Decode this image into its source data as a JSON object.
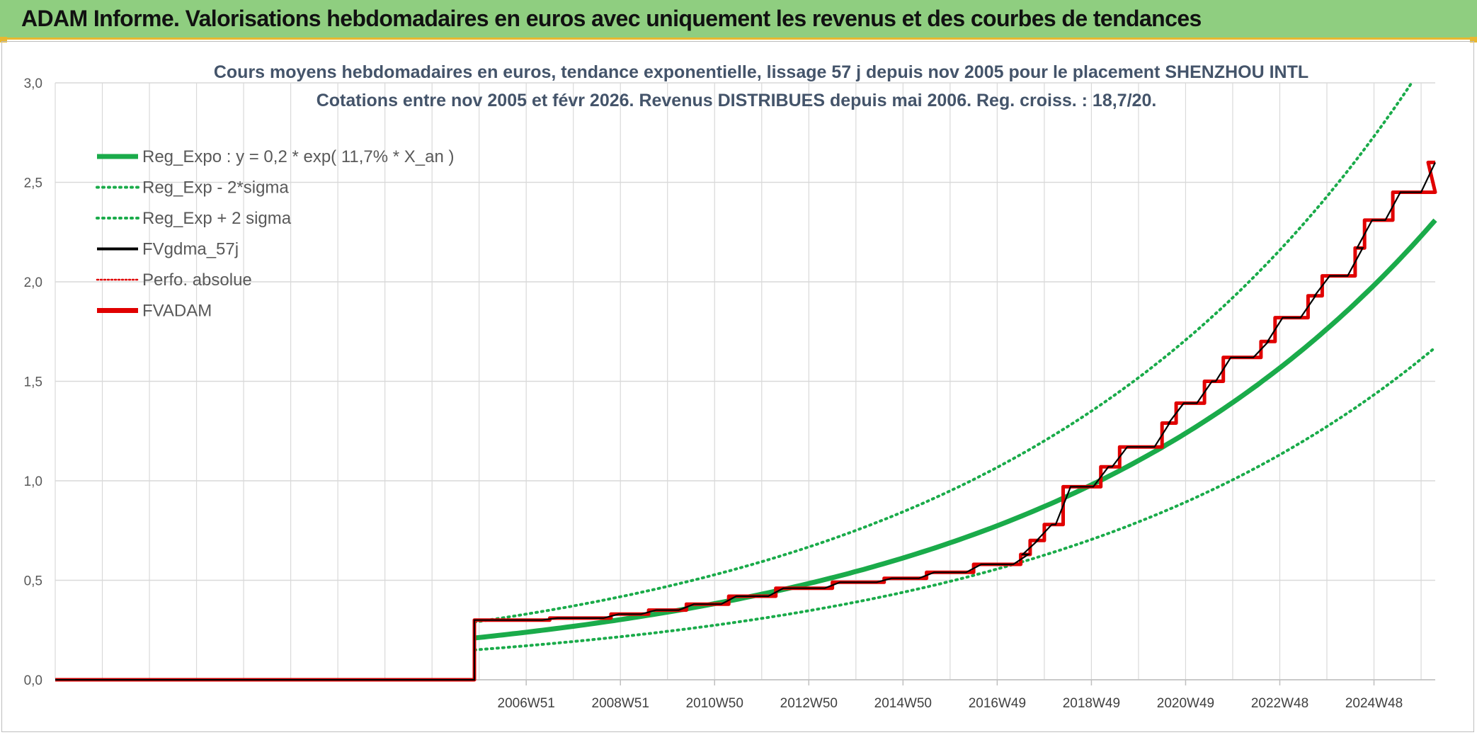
{
  "header": {
    "title": "ADAM Informe. Valorisations hebdomadaires en euros avec uniquement les revenus et des courbes de tendances"
  },
  "colors": {
    "header_bg": "#8fce80",
    "green": "#1aab4a",
    "black": "#000000",
    "red": "#e00000",
    "grid": "#d9d9d9"
  },
  "chart_data": {
    "type": "line",
    "title_line1": "Cours moyens hebdomadaires en euros, tendance exponentielle, lissage 57 j depuis nov 2005 pour le placement SHENZHOU INTL",
    "title_line2": "Cotations entre nov 2005 et févr 2026. Revenus DISTRIBUES depuis mai 2006. Reg. croiss. : 18,7/20.",
    "ylim": [
      0,
      3
    ],
    "yticks": [
      "0,0",
      "0,5",
      "1,0",
      "1,5",
      "2,0",
      "2,5",
      "3,0"
    ],
    "xlim": [
      1997.0,
      2026.3
    ],
    "xtick_labels": [
      "2006W51",
      "2008W51",
      "2010W50",
      "2012W50",
      "2014W50",
      "2016W49",
      "2018W49",
      "2020W49",
      "2022W48",
      "2024W48"
    ],
    "xtick_years": [
      2007.0,
      2009.0,
      2011.0,
      2013.0,
      2015.0,
      2017.0,
      2019.0,
      2021.0,
      2023.0,
      2025.0
    ],
    "grid": true,
    "legend_position": "top-left",
    "legend": [
      {
        "label": "Reg_Expo : y = 0,2 * exp( 11,7% *  X_an )",
        "color": "#1aab4a",
        "style": "solid-thick"
      },
      {
        "label": "Reg_Exp - 2*sigma",
        "color": "#1aab4a",
        "style": "dotted"
      },
      {
        "label": "Reg_Exp + 2 sigma",
        "color": "#1aab4a",
        "style": "dotted"
      },
      {
        "label": "FVgdma_57j",
        "color": "#000000",
        "style": "solid-thin"
      },
      {
        "label": "Perfo. absolue",
        "color": "#e00000",
        "style": "dotted"
      },
      {
        "label": "FVADAM",
        "color": "#e00000",
        "style": "solid-thick"
      }
    ],
    "series": [
      {
        "name": "Reg_Expo : y = 0,2 * exp( 11,7% *  X_an )",
        "type": "exponential",
        "x": [
          2005.9,
          2026.3
        ],
        "y": [
          0.21,
          2.31
        ]
      },
      {
        "name": "Reg_Exp - 2*sigma",
        "type": "exponential",
        "x": [
          2005.9,
          2026.3
        ],
        "y": [
          0.15,
          1.67
        ]
      },
      {
        "name": "Reg_Exp + 2 sigma",
        "type": "exponential",
        "x": [
          2005.9,
          2025.8
        ],
        "y": [
          0.29,
          3.0
        ]
      },
      {
        "name": "FVADAM",
        "type": "step",
        "x": [
          1997.0,
          2005.9,
          2005.9,
          2007.5,
          2008.8,
          2009.6,
          2010.4,
          2011.3,
          2012.3,
          2013.5,
          2014.6,
          2015.5,
          2016.5,
          2017.5,
          2017.7,
          2018.0,
          2018.4,
          2019.2,
          2019.6,
          2020.5,
          2020.8,
          2021.4,
          2021.8,
          2022.6,
          2022.9,
          2023.6,
          2023.9,
          2024.6,
          2024.8,
          2025.4
        ],
        "y": [
          0.0,
          0.0,
          0.3,
          0.31,
          0.33,
          0.35,
          0.38,
          0.42,
          0.46,
          0.49,
          0.51,
          0.54,
          0.58,
          0.63,
          0.7,
          0.78,
          0.97,
          1.07,
          1.17,
          1.29,
          1.39,
          1.5,
          1.62,
          1.7,
          1.82,
          1.93,
          2.03,
          2.17,
          2.31,
          2.45
        ],
        "end": [
          2026.3,
          2.6
        ]
      }
    ]
  }
}
